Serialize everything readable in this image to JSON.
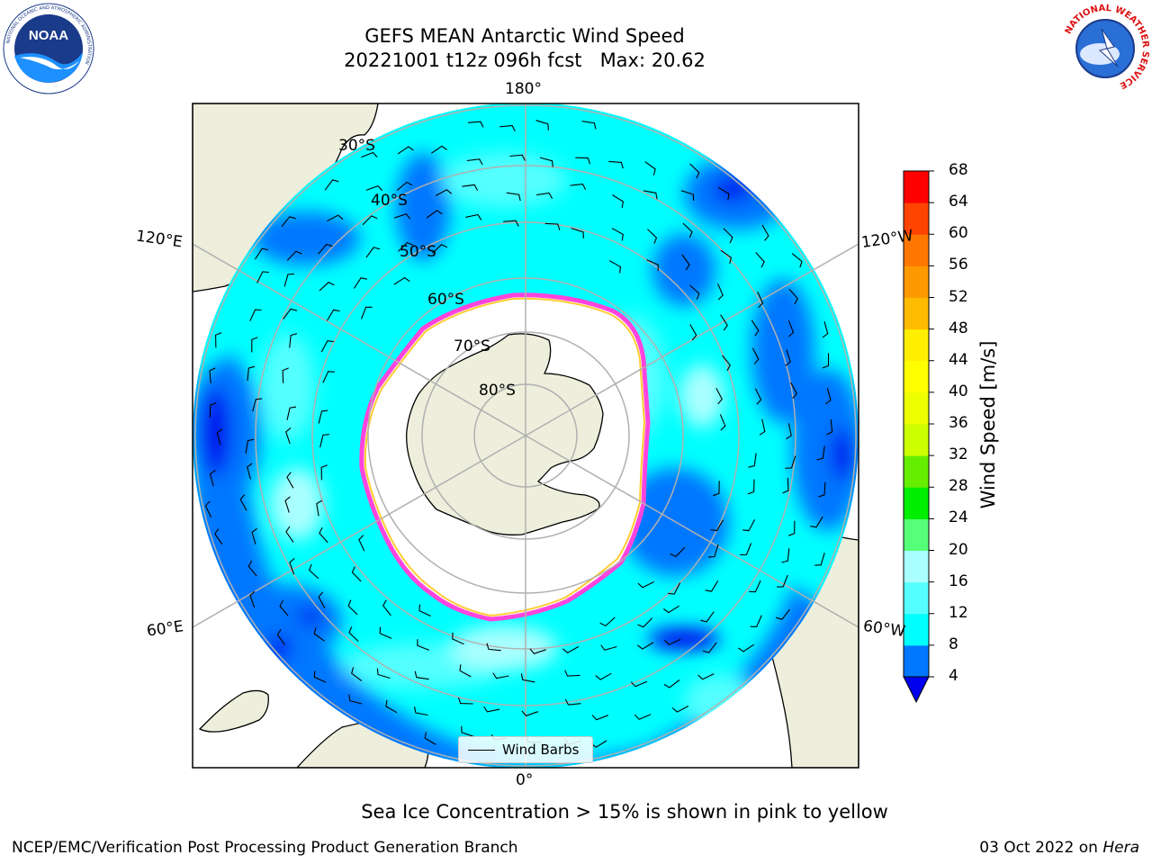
{
  "title": {
    "line1": "GEFS MEAN Antarctic Wind Speed",
    "line2": "20221001 t12z 096h fcst   Max: 20.62"
  },
  "map": {
    "meridian_labels": {
      "top": "180°",
      "bottom": "0°",
      "upper_left": "120°E",
      "lower_left": "60°E",
      "upper_right": "120°W",
      "lower_right": "60°W"
    },
    "parallel_labels": [
      "30°S",
      "40°S",
      "50°S",
      "60°S",
      "70°S",
      "80°S"
    ],
    "colors": {
      "land": "#eeeedc",
      "ocean_4_8": "#0077ff",
      "ocean_8_12": "#00ffff",
      "ocean_12_16": "#55ffff",
      "ocean_16_20": "#aaffff",
      "below_4": "#0000ee",
      "ice_edge": "#ff44dd",
      "ice_inner": "#ffcc33",
      "grid": "#b0b0b0"
    }
  },
  "legend": {
    "label": "Wind Barbs"
  },
  "colorbar": {
    "label": "Wind Speed [m/s]",
    "ticks": [
      "4",
      "8",
      "12",
      "16",
      "20",
      "24",
      "28",
      "32",
      "36",
      "40",
      "44",
      "48",
      "52",
      "56",
      "60",
      "64",
      "68"
    ],
    "bins": [
      {
        "range": "4-8",
        "color": "#0077ff"
      },
      {
        "range": "8-12",
        "color": "#00ffff"
      },
      {
        "range": "12-16",
        "color": "#55ffff"
      },
      {
        "range": "16-20",
        "color": "#aaffff"
      },
      {
        "range": "20-24",
        "color": "#55ff77"
      },
      {
        "range": "24-28",
        "color": "#00ee00"
      },
      {
        "range": "28-32",
        "color": "#66ee00"
      },
      {
        "range": "32-36",
        "color": "#ccff00"
      },
      {
        "range": "36-40",
        "color": "#eeff00"
      },
      {
        "range": "40-44",
        "color": "#ffff00"
      },
      {
        "range": "44-48",
        "color": "#ffee00"
      },
      {
        "range": "48-52",
        "color": "#ffbb00"
      },
      {
        "range": "52-56",
        "color": "#ff9900"
      },
      {
        "range": "56-60",
        "color": "#ff7700"
      },
      {
        "range": "60-64",
        "color": "#ff4400"
      },
      {
        "range": "64-68",
        "color": "#ff0000"
      }
    ],
    "underflow_color": "#0000ee"
  },
  "notes": {
    "sea_ice": "Sea Ice Concentration > 15% is shown in pink to yellow"
  },
  "footer": {
    "left": "NCEP/EMC/Verification Post Processing Product Generation Branch",
    "right_date": "03 Oct 2022 on ",
    "right_host": "Hera"
  },
  "logos": {
    "noaa_text": "NOAA",
    "noaa_ring_top": "NATIONAL OCEANIC AND ATMOSPHERIC ADMINISTRATION",
    "noaa_ring_bottom": "U.S. DEPARTMENT OF COMMERCE",
    "nws_ring": "NATIONAL WEATHER SERVICE"
  }
}
